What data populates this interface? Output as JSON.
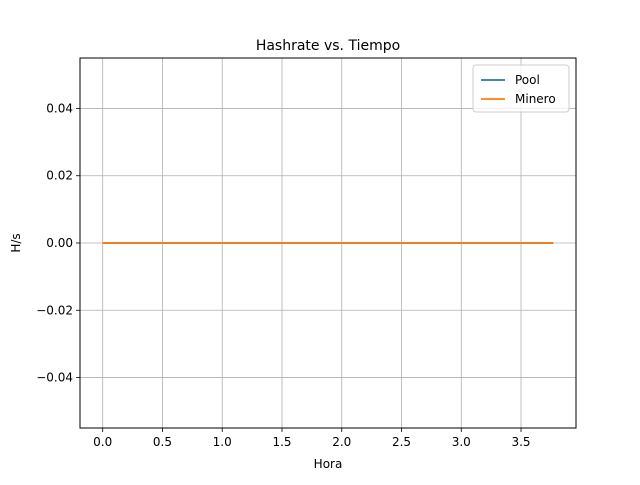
{
  "chart_data": {
    "type": "line",
    "title": "Hashrate vs. Tiempo",
    "xlabel": "Hora",
    "ylabel": "H/s",
    "xlim": [
      -0.19,
      3.96
    ],
    "ylim": [
      -0.055,
      0.055
    ],
    "xticks": [
      0.0,
      0.5,
      1.0,
      1.5,
      2.0,
      2.5,
      3.0,
      3.5
    ],
    "yticks": [
      -0.04,
      -0.02,
      0.0,
      0.02,
      0.04
    ],
    "xtick_labels": [
      "0.0",
      "0.5",
      "1.0",
      "1.5",
      "2.0",
      "2.5",
      "3.0",
      "3.5"
    ],
    "ytick_labels": [
      "−0.04",
      "−0.02",
      "0.00",
      "0.02",
      "0.04"
    ],
    "grid": true,
    "legend_position": "top-right",
    "series": [
      {
        "name": "Pool",
        "color": "#1f77b4",
        "x": [
          0.0,
          3.77
        ],
        "y": [
          0,
          0
        ]
      },
      {
        "name": "Minero",
        "color": "#ff7f0e",
        "x": [
          0.0,
          3.77
        ],
        "y": [
          0,
          0
        ]
      }
    ]
  }
}
